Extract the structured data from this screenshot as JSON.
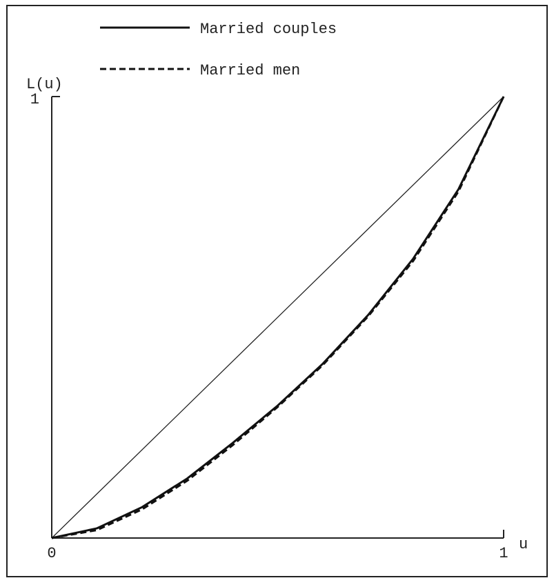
{
  "chart_data": {
    "type": "line",
    "y_label": "L(u)",
    "x_label": "u",
    "x": [
      0,
      0.1,
      0.2,
      0.3,
      0.4,
      0.5,
      0.6,
      0.7,
      0.8,
      0.9,
      1
    ],
    "series": [
      {
        "name": "Married couples",
        "color": "#111111",
        "style": "solid",
        "values": [
          0,
          0.022,
          0.07,
          0.135,
          0.215,
          0.3,
          0.395,
          0.505,
          0.633,
          0.79,
          1
        ]
      },
      {
        "name": "Married men",
        "color": "#111111",
        "style": "dashed",
        "values": [
          0,
          0.018,
          0.065,
          0.13,
          0.21,
          0.297,
          0.392,
          0.502,
          0.628,
          0.785,
          1
        ]
      }
    ],
    "equality_line": {
      "x": [
        0,
        1
      ],
      "y": [
        0,
        1
      ]
    },
    "xlim": [
      0,
      1
    ],
    "ylim": [
      0,
      1
    ],
    "xticks": [
      0,
      1
    ],
    "yticks": [
      1
    ]
  }
}
